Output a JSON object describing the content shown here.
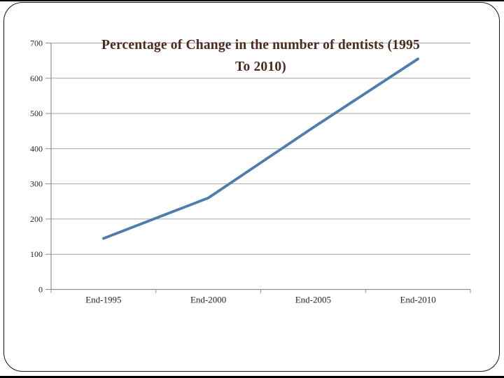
{
  "slide": {
    "background_color": "#ffffff",
    "border_color": "#151515"
  },
  "chart_data": {
    "type": "line",
    "title": "Percentage of Change in the number of dentists (1995 To 2010)",
    "title_lines": [
      "Percentage of Change in the number of dentists (1995",
      "To 2010)"
    ],
    "title_color": "#4b2a22",
    "categories": [
      "End-1995",
      "End-2000",
      "End-2005",
      "End-2010"
    ],
    "values": [
      145,
      260,
      460,
      655
    ],
    "yticks": [
      0,
      100,
      200,
      300,
      400,
      500,
      600,
      700
    ],
    "ylim": [
      0,
      700
    ],
    "xlabel": "",
    "ylabel": "",
    "grid": true,
    "legend": false,
    "line_color": "#4f7cac",
    "line_width": 3.8,
    "gridline_color": "#a6a6a6",
    "axis_color": "#8f8f8f",
    "tick_label_color": "#262626"
  }
}
